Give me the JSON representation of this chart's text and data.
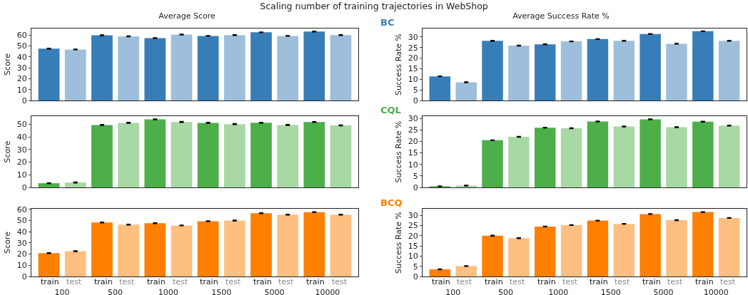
{
  "chart_data": [
    {
      "type": "bar",
      "title": "Scaling number of training trajectories in WebShop",
      "subtitle": "Average Score",
      "ylabel": "Score",
      "categories": [
        "100",
        "500",
        "1000",
        "1500",
        "5000",
        "10000"
      ],
      "ylim": [
        0,
        66
      ],
      "yticks": [
        0,
        10,
        20,
        30,
        40,
        50,
        60
      ],
      "grid": false,
      "legend": false,
      "tick_labels": "y",
      "series": [
        {
          "color": "#377eb8",
          "values": [
            47.5,
            59.8,
            57.2,
            59.2,
            62.5,
            63.2
          ],
          "errors": [
            0.3,
            0.3,
            0.3,
            0.3,
            0.3,
            0.3
          ]
        },
        {
          "color": "#9ebfdb",
          "values": [
            46.8,
            58.8,
            60.5,
            60.0,
            59.2,
            60.0
          ],
          "errors": [
            0.3,
            0.3,
            0.3,
            0.3,
            0.3,
            0.3
          ]
        }
      ]
    },
    {
      "type": "bar",
      "title": "Average Success Rate %",
      "ylabel": "Success Rate %",
      "annotations": [
        "BC"
      ],
      "categories": [
        "100",
        "500",
        "1000",
        "1500",
        "5000",
        "10000"
      ],
      "ylim": [
        0,
        34
      ],
      "yticks": [
        0,
        5,
        10,
        15,
        20,
        25,
        30
      ],
      "grid": false,
      "legend": false,
      "tick_labels": "y",
      "series": [
        {
          "color": "#377eb8",
          "values": [
            11.4,
            28.2,
            26.5,
            29.0,
            31.4,
            32.7
          ],
          "errors": [
            0.15,
            0.15,
            0.15,
            0.15,
            0.15,
            0.15
          ]
        },
        {
          "color": "#9ebfdb",
          "values": [
            8.6,
            25.9,
            27.9,
            28.2,
            26.8,
            28.2
          ],
          "errors": [
            0.15,
            0.15,
            0.15,
            0.15,
            0.15,
            0.15
          ]
        }
      ]
    },
    {
      "type": "bar",
      "ylabel": "Score",
      "categories": [
        "100",
        "500",
        "1000",
        "1500",
        "5000",
        "10000"
      ],
      "ylim": [
        0,
        56.5
      ],
      "yticks": [
        0,
        10,
        20,
        30,
        40,
        50
      ],
      "grid": false,
      "legend": false,
      "tick_labels": "y",
      "series": [
        {
          "color": "#4daf4a",
          "values": [
            3.3,
            49.5,
            54.0,
            51.2,
            51.3,
            51.8
          ],
          "errors": [
            0.3,
            0.3,
            0.3,
            0.3,
            0.3,
            0.3
          ]
        },
        {
          "color": "#a8d8a4",
          "values": [
            3.9,
            51.2,
            51.9,
            50.2,
            49.5,
            49.2
          ],
          "errors": [
            0.3,
            0.3,
            0.3,
            0.3,
            0.3,
            0.3
          ]
        }
      ]
    },
    {
      "type": "bar",
      "ylabel": "Success Rate %",
      "annotations": [
        "CQL"
      ],
      "categories": [
        "100",
        "500",
        "1000",
        "1500",
        "5000",
        "10000"
      ],
      "ylim": [
        0,
        31
      ],
      "yticks": [
        0,
        5,
        10,
        15,
        20,
        25,
        30
      ],
      "grid": false,
      "legend": false,
      "tick_labels": "y",
      "series": [
        {
          "color": "#4daf4a",
          "values": [
            0.5,
            20.5,
            26.0,
            28.7,
            29.6,
            28.6
          ],
          "errors": [
            0.15,
            0.15,
            0.15,
            0.15,
            0.15,
            0.15
          ]
        },
        {
          "color": "#a8d8a4",
          "values": [
            0.8,
            22.0,
            25.7,
            26.5,
            26.2,
            26.9
          ],
          "errors": [
            0.15,
            0.15,
            0.15,
            0.15,
            0.15,
            0.15
          ]
        }
      ]
    },
    {
      "type": "bar",
      "ylabel": "Score",
      "categories": [
        "100",
        "500",
        "1000",
        "1500",
        "5000",
        "10000"
      ],
      "ylim": [
        0,
        60.5
      ],
      "yticks": [
        0,
        10,
        20,
        30,
        40,
        50,
        60
      ],
      "grid": false,
      "legend": false,
      "series": [
        {
          "name": "train",
          "color": "#ff7f00",
          "values": [
            20.8,
            48.2,
            47.6,
            49.3,
            56.5,
            57.5
          ],
          "errors": [
            0.3,
            0.3,
            0.3,
            0.3,
            0.3,
            0.3
          ]
        },
        {
          "name": "test",
          "color": "#ffbf80",
          "values": [
            22.6,
            46.3,
            45.6,
            50.0,
            55.2,
            55.3
          ],
          "errors": [
            0.3,
            0.3,
            0.3,
            0.3,
            0.3,
            0.3
          ]
        }
      ]
    },
    {
      "type": "bar",
      "ylabel": "Success Rate %",
      "annotations": [
        "BCQ"
      ],
      "categories": [
        "100",
        "500",
        "1000",
        "1500",
        "5000",
        "10000"
      ],
      "ylim": [
        0,
        33.2
      ],
      "yticks": [
        0,
        5,
        10,
        15,
        20,
        25,
        30
      ],
      "grid": false,
      "legend": false,
      "series": [
        {
          "name": "train",
          "color": "#ff7f00",
          "values": [
            3.5,
            20.0,
            24.5,
            27.4,
            30.6,
            31.6
          ],
          "errors": [
            0.15,
            0.15,
            0.15,
            0.15,
            0.15,
            0.15
          ]
        },
        {
          "name": "test",
          "color": "#ffbf80",
          "values": [
            5.1,
            18.8,
            25.2,
            25.8,
            27.6,
            28.7
          ],
          "errors": [
            0.15,
            0.15,
            0.15,
            0.15,
            0.15,
            0.15
          ]
        }
      ]
    }
  ]
}
